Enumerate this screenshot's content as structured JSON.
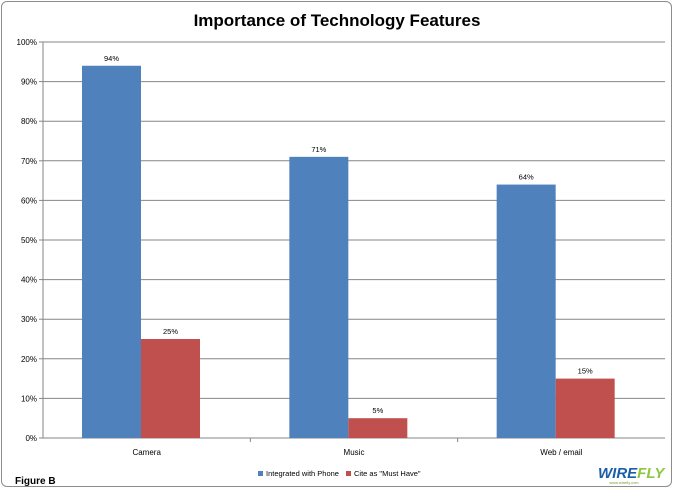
{
  "chart_data": {
    "type": "bar",
    "title": "Importance of Technology Features",
    "categories": [
      "Camera",
      "Music",
      "Web / email"
    ],
    "series": [
      {
        "name": "Integrated with Phone",
        "color": "#4f81bd",
        "values": [
          94,
          71,
          64
        ],
        "labels": [
          "94%",
          "71%",
          "64%"
        ]
      },
      {
        "name": "Cite as \"Must Have\"",
        "color": "#c0504d",
        "values": [
          25,
          5,
          15
        ],
        "labels": [
          "25%",
          "5%",
          "15%"
        ]
      }
    ],
    "ylim": [
      0,
      100
    ],
    "yticks": [
      "0%",
      "10%",
      "20%",
      "30%",
      "40%",
      "50%",
      "60%",
      "70%",
      "80%",
      "90%",
      "100%"
    ],
    "grid": true,
    "legend_position": "bottom"
  },
  "figure_label": "Figure B",
  "logo": {
    "text": "WIREFLY",
    "tagline": "www.wirefly.com",
    "colors": {
      "primary": "#1a5fa8",
      "accent": "#8dc63f"
    }
  }
}
